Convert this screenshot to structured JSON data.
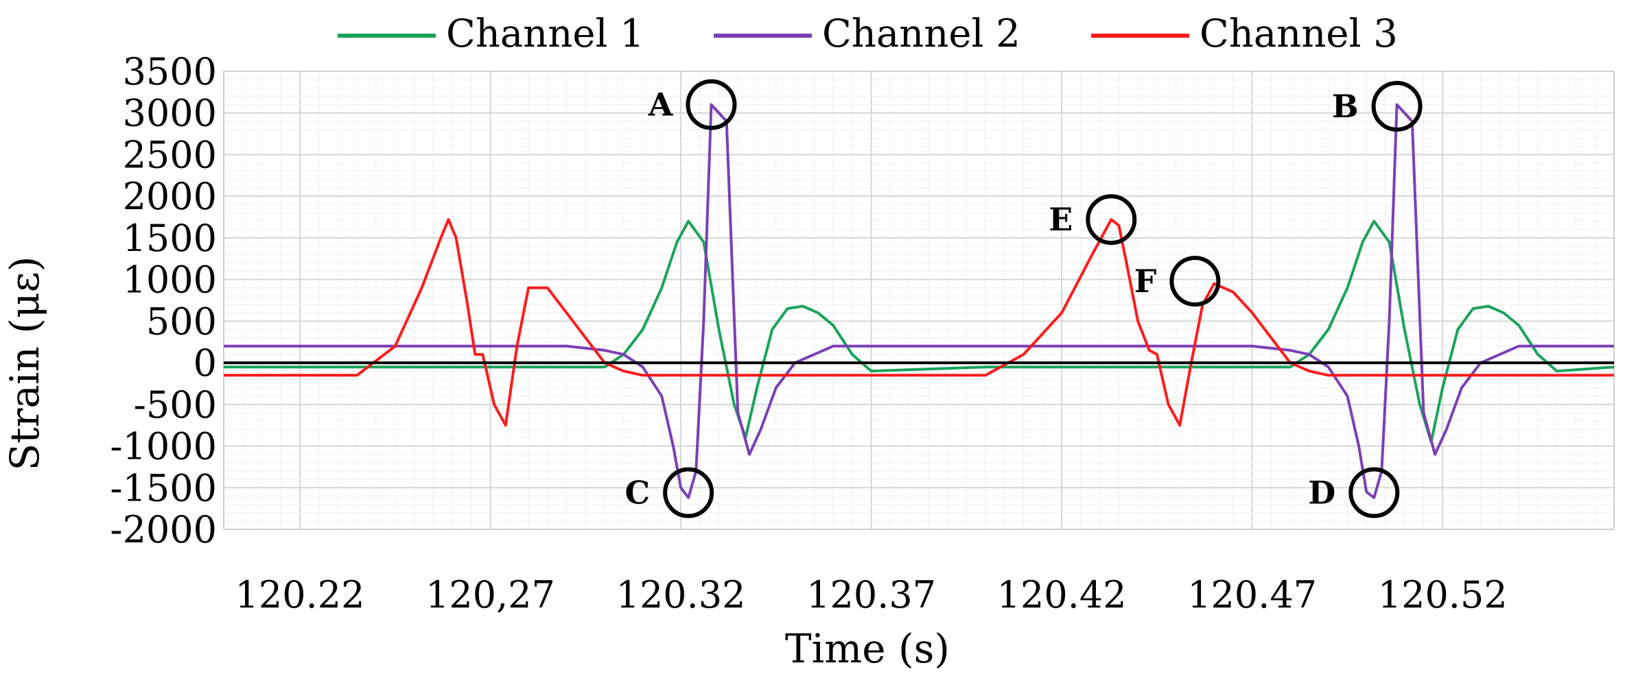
{
  "chart_data": {
    "type": "line",
    "title": "",
    "xlabel": "Time (s)",
    "ylabel": "Strain (με)",
    "xlim": [
      120.2,
      120.565
    ],
    "ylim": [
      -2000,
      3500
    ],
    "x_ticks": [
      "120.22",
      "120,27",
      "120.32",
      "120.37",
      "120.42",
      "120.47",
      "120.52"
    ],
    "y_ticks": [
      "3500",
      "3000",
      "2500",
      "2000",
      "1500",
      "1000",
      "500",
      "0",
      "-500",
      "-1000",
      "-1500",
      "-2000"
    ],
    "grid": true,
    "legend_position": "top",
    "colors": {
      "Channel 1": "#1aa35a",
      "Channel 2": "#7b3fb5",
      "Channel 3": "#ff1a1a",
      "zero_line": "#000000"
    },
    "series": [
      {
        "name": "Channel 1",
        "x": [
          120.2,
          120.3,
          120.305,
          120.31,
          120.315,
          120.319,
          120.322,
          120.326,
          120.33,
          120.334,
          120.337,
          120.34,
          120.344,
          120.348,
          120.352,
          120.356,
          120.36,
          120.365,
          120.37,
          120.4,
          120.45,
          120.48,
          120.485,
          120.49,
          120.495,
          120.499,
          120.502,
          120.506,
          120.51,
          120.514,
          120.517,
          120.52,
          120.524,
          120.528,
          120.532,
          120.536,
          120.54,
          120.545,
          120.55,
          120.565
        ],
        "y": [
          -50,
          -50,
          100,
          400,
          900,
          1450,
          1700,
          1450,
          400,
          -500,
          -900,
          -300,
          400,
          650,
          680,
          600,
          450,
          100,
          -100,
          -50,
          -50,
          -50,
          100,
          400,
          900,
          1450,
          1700,
          1450,
          400,
          -500,
          -950,
          -300,
          400,
          650,
          680,
          600,
          450,
          100,
          -100,
          -50
        ]
      },
      {
        "name": "Channel 2",
        "x": [
          120.2,
          120.29,
          120.3,
          120.305,
          120.31,
          120.315,
          120.318,
          120.32,
          120.322,
          120.324,
          120.326,
          120.328,
          120.332,
          120.335,
          120.338,
          120.341,
          120.345,
          120.35,
          120.355,
          120.36,
          120.37,
          120.4,
          120.45,
          120.47,
          120.48,
          120.485,
          120.49,
          120.495,
          120.498,
          120.5,
          120.502,
          120.504,
          120.506,
          120.508,
          120.512,
          120.515,
          120.518,
          120.521,
          120.525,
          120.53,
          120.535,
          120.54,
          120.55,
          120.565
        ],
        "y": [
          200,
          200,
          150,
          100,
          -50,
          -400,
          -1000,
          -1500,
          -1620,
          -1300,
          500,
          3100,
          2900,
          -600,
          -1100,
          -800,
          -300,
          0,
          100,
          200,
          200,
          200,
          200,
          200,
          150,
          100,
          -50,
          -400,
          -1000,
          -1550,
          -1620,
          -1300,
          500,
          3100,
          2900,
          -600,
          -1100,
          -800,
          -300,
          0,
          100,
          200,
          200,
          200
        ]
      },
      {
        "name": "Channel 3",
        "x": [
          120.2,
          120.235,
          120.245,
          120.252,
          120.257,
          120.259,
          120.261,
          120.264,
          120.266,
          120.268,
          120.271,
          120.274,
          120.277,
          120.28,
          120.285,
          120.29,
          120.295,
          120.3,
          120.305,
          120.31,
          120.32,
          120.4,
          120.41,
          120.42,
          120.428,
          120.433,
          120.435,
          120.437,
          120.44,
          120.443,
          120.445,
          120.448,
          120.451,
          120.454,
          120.457,
          120.46,
          120.465,
          120.47,
          120.475,
          120.48,
          120.485,
          120.49,
          120.5,
          120.565
        ],
        "y": [
          -150,
          -150,
          200,
          900,
          1500,
          1720,
          1500,
          700,
          100,
          100,
          -500,
          -750,
          200,
          900,
          900,
          600,
          300,
          0,
          -100,
          -150,
          -150,
          -150,
          100,
          600,
          1300,
          1720,
          1650,
          1200,
          500,
          150,
          100,
          -500,
          -750,
          0,
          700,
          950,
          850,
          600,
          300,
          0,
          -100,
          -150,
          -150,
          -150
        ]
      }
    ],
    "annotations": [
      {
        "label": "A",
        "x": 120.328,
        "y": 3100,
        "side": "left"
      },
      {
        "label": "B",
        "x": 120.508,
        "y": 3080,
        "side": "left"
      },
      {
        "label": "C",
        "x": 120.322,
        "y": -1560,
        "side": "left"
      },
      {
        "label": "D",
        "x": 120.502,
        "y": -1560,
        "side": "left"
      },
      {
        "label": "E",
        "x": 120.433,
        "y": 1720,
        "side": "left"
      },
      {
        "label": "F",
        "x": 120.455,
        "y": 980,
        "side": "left"
      }
    ]
  }
}
